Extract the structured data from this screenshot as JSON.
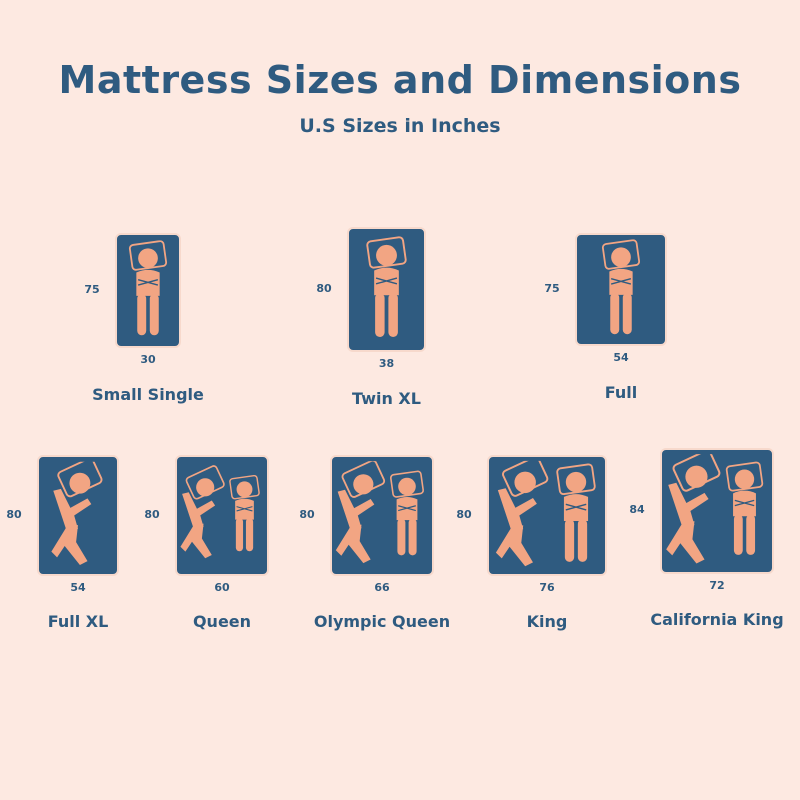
{
  "title": "Mattress Sizes and Dimensions",
  "subtitle": "U.S Sizes in Inches",
  "colors": {
    "background": "#fde9e1",
    "mattress": "#2f5b80",
    "figure": "#f2a583",
    "text": "#2f5b80"
  },
  "mattresses": [
    {
      "name": "Small Single",
      "length": "75",
      "width": "30",
      "sleepers": 1
    },
    {
      "name": "Twin XL",
      "length": "80",
      "width": "38",
      "sleepers": 1
    },
    {
      "name": "Full",
      "length": "75",
      "width": "54",
      "sleepers": 1
    },
    {
      "name": "Full XL",
      "length": "80",
      "width": "54",
      "sleepers": 1
    },
    {
      "name": "Queen",
      "length": "80",
      "width": "60",
      "sleepers": 2
    },
    {
      "name": "Olympic Queen",
      "length": "80",
      "width": "66",
      "sleepers": 2
    },
    {
      "name": "King",
      "length": "80",
      "width": "76",
      "sleepers": 2
    },
    {
      "name": "California King",
      "length": "84",
      "width": "72",
      "sleepers": 2
    }
  ]
}
